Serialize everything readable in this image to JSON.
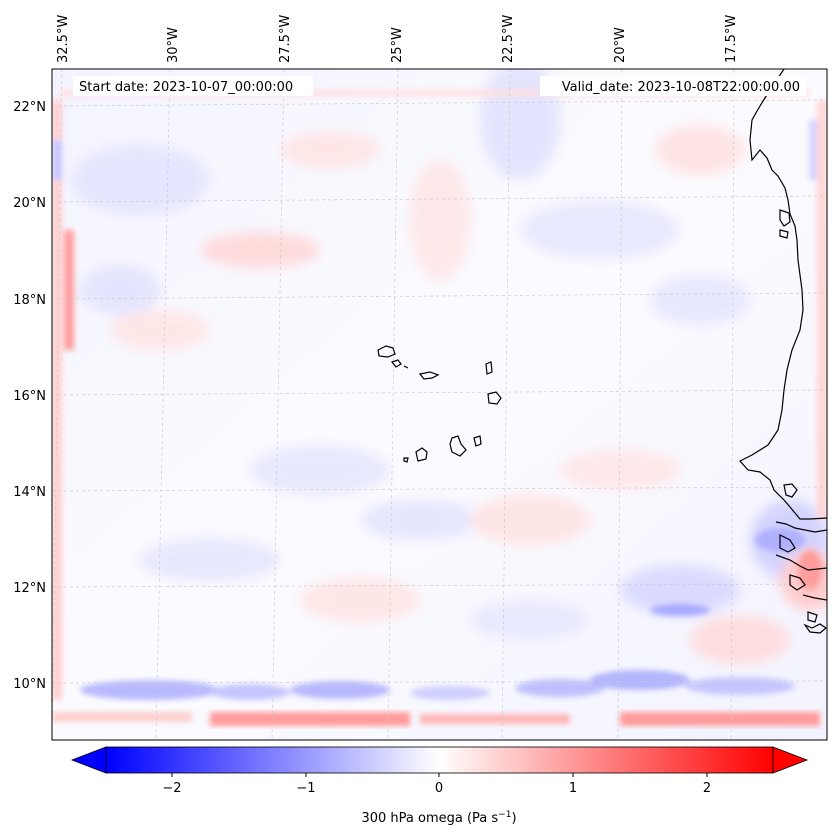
{
  "map": {
    "start_label": "Start date: 2023-10-07_00:00:00",
    "valid_label": "Valid_date: 2023-10-08T22:00:00.00",
    "lon_ticks": [
      "32.5°W",
      "30°W",
      "27.5°W",
      "25°W",
      "22.5°W",
      "20°W",
      "17.5°W"
    ],
    "lat_ticks": [
      "22°N",
      "20°N",
      "18°N",
      "16°N",
      "14°N",
      "12°N",
      "10°N"
    ],
    "grid": true,
    "coastline_color": "#000000"
  },
  "colorbar": {
    "label": "300 hPa omega (Pa s",
    "label_sup": "−1",
    "label_tail": ")",
    "ticks": [
      "−2",
      "−1",
      "0",
      "1",
      "2"
    ],
    "range": [
      -2.75,
      2.75
    ],
    "cmap_low": "#0000ff",
    "cmap_mid": "#ffffff",
    "cmap_high": "#ff0000"
  }
}
